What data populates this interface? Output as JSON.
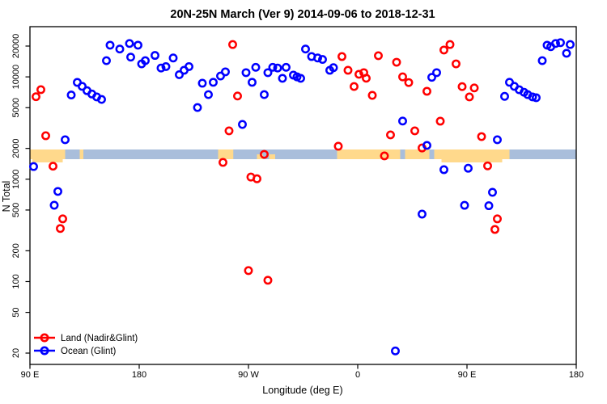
{
  "title": "20N-25N March (Ver 9)   2014-09-06 to 2018-12-31",
  "axes": {
    "x_label": "Longitude (deg E)",
    "y_label": "N Total",
    "y_scale": "log",
    "x_range": [
      90,
      540
    ],
    "y_ticks": [
      20,
      50,
      100,
      200,
      500,
      1000,
      2000,
      5000,
      10000,
      20000
    ],
    "x_ticks": [
      {
        "value": 90,
        "label": "90 E"
      },
      {
        "value": 180,
        "label": "180"
      },
      {
        "value": 270,
        "label": "90 W"
      },
      {
        "value": 360,
        "label": "0"
      },
      {
        "value": 450,
        "label": "90 E"
      },
      {
        "value": 540,
        "label": "180"
      }
    ]
  },
  "legend": {
    "items": [
      {
        "label": "Land (Nadir&Glint)",
        "color": "#ff0000"
      },
      {
        "label": "Ocean (Glint)",
        "color": "#0000ff"
      }
    ]
  },
  "map_band": {
    "description": "land/ocean coastline strip drawn across the plot near N=2000",
    "center_value": 2000,
    "ocean_color": "#a9bedb",
    "land_color": "#ffd98c",
    "land_segments": [
      [
        90,
        119
      ],
      [
        131,
        134
      ],
      [
        245,
        257.5
      ],
      [
        343,
        395
      ],
      [
        399,
        419
      ],
      [
        423,
        485
      ]
    ],
    "land_specks": [
      [
        277,
        282
      ],
      [
        287,
        292
      ]
    ],
    "land_bumps": [
      [
        92,
        117
      ],
      [
        429,
        479
      ]
    ]
  },
  "chart_data": {
    "type": "scatter",
    "title": "20N-25N March (Ver 9)   2014-09-06 to 2018-12-31",
    "xlabel": "Longitude (deg E)",
    "ylabel": "N Total",
    "xlim": [
      90,
      540
    ],
    "ylim_log": [
      15,
      31000
    ],
    "legend_position": "bottom-left",
    "series": [
      {
        "name": "Land (Nadir&Glint)",
        "color": "#ff0000",
        "points": [
          [
            99,
            7500
          ],
          [
            95,
            6400
          ],
          [
            103,
            2660
          ],
          [
            109,
            1340
          ],
          [
            117,
            410
          ],
          [
            115,
            330
          ],
          [
            257,
            20700
          ],
          [
            261,
            6500
          ],
          [
            254,
            2970
          ],
          [
            249,
            1460
          ],
          [
            272,
            1050
          ],
          [
            277,
            1010
          ],
          [
            283,
            1750
          ],
          [
            270,
            128
          ],
          [
            286,
            103
          ],
          [
            347,
            15800
          ],
          [
            352,
            11600
          ],
          [
            357,
            8050
          ],
          [
            361,
            10600
          ],
          [
            365,
            11000
          ],
          [
            367,
            9700
          ],
          [
            372,
            6600
          ],
          [
            377,
            16100
          ],
          [
            392,
            13900
          ],
          [
            397,
            10000
          ],
          [
            402,
            8800
          ],
          [
            387,
            2710
          ],
          [
            407,
            2970
          ],
          [
            344,
            2100
          ],
          [
            382,
            1690
          ],
          [
            413,
            2020
          ],
          [
            417,
            7230
          ],
          [
            431,
            18300
          ],
          [
            436,
            20700
          ],
          [
            441,
            13400
          ],
          [
            446,
            8030
          ],
          [
            456,
            7800
          ],
          [
            452,
            6370
          ],
          [
            428,
            3690
          ],
          [
            462,
            2610
          ],
          [
            467,
            1350
          ],
          [
            475,
            410
          ],
          [
            473,
            323
          ]
        ]
      },
      {
        "name": "Ocean (Glint)",
        "color": "#0000ff",
        "points": [
          [
            93,
            1330
          ],
          [
            113,
            760
          ],
          [
            110,
            557
          ],
          [
            124,
            6650
          ],
          [
            119,
            2430
          ],
          [
            129,
            8830
          ],
          [
            133,
            8080
          ],
          [
            137,
            7330
          ],
          [
            141,
            6800
          ],
          [
            145,
            6370
          ],
          [
            149,
            6020
          ],
          [
            153,
            14400
          ],
          [
            156,
            20400
          ],
          [
            164,
            18700
          ],
          [
            172,
            21200
          ],
          [
            179,
            20400
          ],
          [
            173,
            15600
          ],
          [
            182,
            13400
          ],
          [
            185,
            14400
          ],
          [
            193,
            16200
          ],
          [
            198,
            12200
          ],
          [
            202,
            12600
          ],
          [
            208,
            15300
          ],
          [
            213,
            10500
          ],
          [
            217,
            11600
          ],
          [
            221,
            12600
          ],
          [
            228,
            5020
          ],
          [
            232,
            8670
          ],
          [
            237,
            6710
          ],
          [
            241,
            8850
          ],
          [
            247,
            10200
          ],
          [
            251,
            11200
          ],
          [
            265,
            3430
          ],
          [
            268,
            11000
          ],
          [
            273,
            8850
          ],
          [
            276,
            12400
          ],
          [
            283,
            6710
          ],
          [
            286,
            11000
          ],
          [
            290,
            12400
          ],
          [
            294,
            12200
          ],
          [
            298,
            9680
          ],
          [
            301,
            12400
          ],
          [
            307,
            10400
          ],
          [
            310,
            10000
          ],
          [
            313,
            9680
          ],
          [
            317,
            18700
          ],
          [
            322,
            15800
          ],
          [
            327,
            15300
          ],
          [
            331,
            14800
          ],
          [
            337,
            11600
          ],
          [
            340,
            12300
          ],
          [
            397,
            3700
          ],
          [
            391,
            21
          ],
          [
            421,
            9900
          ],
          [
            425,
            11000
          ],
          [
            417,
            2140
          ],
          [
            413,
            456
          ],
          [
            431,
            1240
          ],
          [
            448,
            556
          ],
          [
            451,
            1280
          ],
          [
            468,
            551
          ],
          [
            471,
            745
          ],
          [
            475,
            2430
          ],
          [
            481,
            6450
          ],
          [
            485,
            8850
          ],
          [
            489,
            8080
          ],
          [
            493,
            7490
          ],
          [
            497,
            7070
          ],
          [
            500,
            6710
          ],
          [
            504,
            6370
          ],
          [
            507,
            6260
          ],
          [
            512,
            14400
          ],
          [
            516,
            20400
          ],
          [
            519,
            19700
          ],
          [
            523,
            21200
          ],
          [
            527,
            21600
          ],
          [
            535,
            20700
          ],
          [
            532,
            17000
          ]
        ]
      }
    ]
  }
}
